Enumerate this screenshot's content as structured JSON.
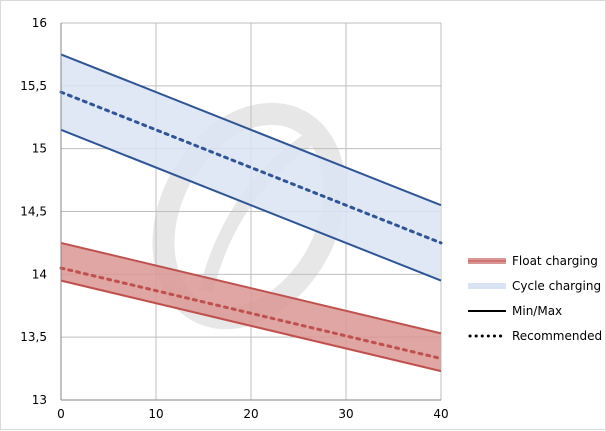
{
  "chart_data": {
    "type": "line",
    "xlim": [
      0,
      40
    ],
    "ylim": [
      13,
      16
    ],
    "x_ticks": [
      "0",
      "10",
      "20",
      "30",
      "40"
    ],
    "y_ticks": [
      "13",
      "13,5",
      "14",
      "14,5",
      "15",
      "15,5",
      "16"
    ],
    "grid": true,
    "legend_position": "right",
    "colors": {
      "cycle_line": "#2f5597",
      "cycle_fill": "#dae3f3",
      "float_line": "#c0504d",
      "float_fill": "#d99694",
      "grid": "#bfbfbf"
    },
    "bands": [
      {
        "name": "Cycle charging",
        "x": [
          0,
          40
        ],
        "max": [
          15.75,
          14.55
        ],
        "min": [
          15.15,
          13.95
        ],
        "recommended": [
          15.45,
          14.25
        ]
      },
      {
        "name": "Float charging",
        "x": [
          0,
          40
        ],
        "max": [
          14.25,
          13.53
        ],
        "min": [
          13.95,
          13.23
        ],
        "recommended": [
          14.05,
          13.33
        ]
      }
    ],
    "legend": [
      {
        "label": "Float charging",
        "style": "float-band"
      },
      {
        "label": "Cycle charging",
        "style": "cycle-band"
      },
      {
        "label": "Min/Max",
        "style": "solid"
      },
      {
        "label": "Recommended",
        "style": "dotted"
      }
    ]
  }
}
